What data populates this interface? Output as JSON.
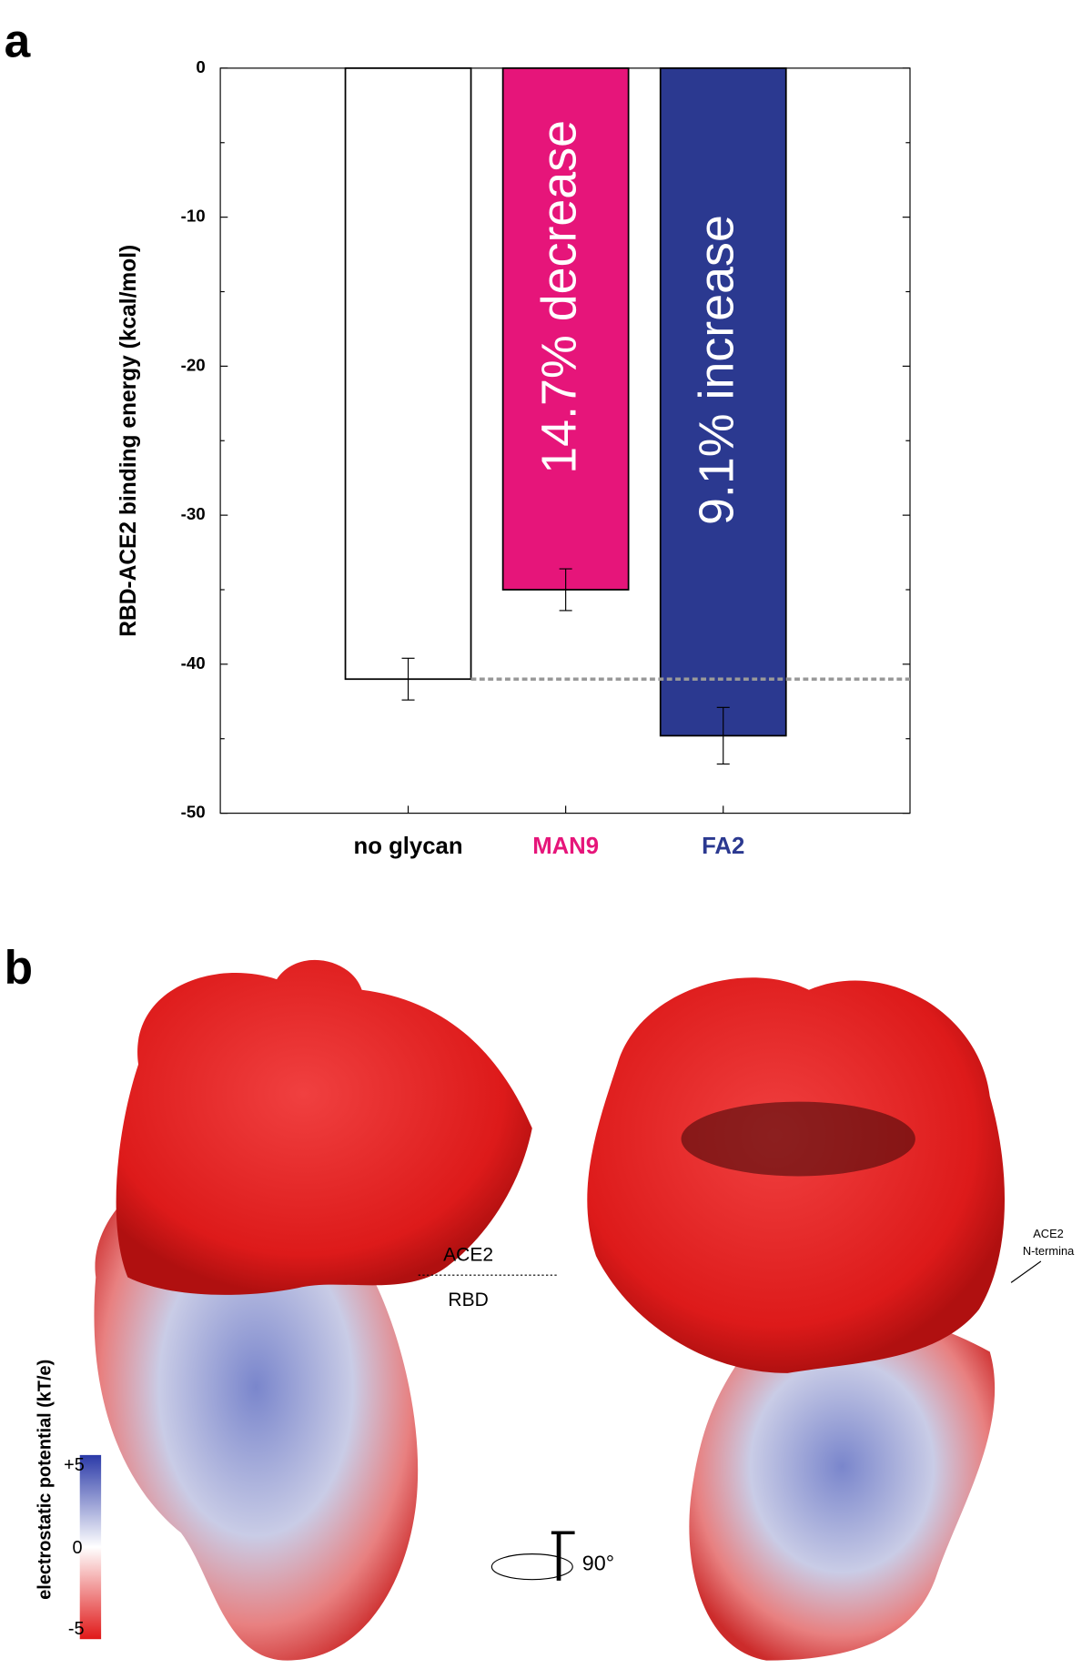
{
  "chart_data": {
    "type": "bar",
    "y_label": "RBD-ACE2 binding energy (kcal/mol)",
    "categories": [
      "no glycan",
      "MAN9",
      "FA2"
    ],
    "values": [
      -41.0,
      -35.0,
      -44.8
    ],
    "errors": [
      1.4,
      1.4,
      1.9
    ],
    "colors": [
      "#ffffff",
      "#e6157a",
      "#2b3990"
    ],
    "category_colors": [
      "#000000",
      "#e6157a",
      "#2b3990"
    ],
    "annotations": [
      "",
      "14.7% decrease",
      "9.1% increase"
    ],
    "ylim": [
      -50,
      0
    ],
    "yticks": [
      0,
      -10,
      -20,
      -30,
      -40,
      -50
    ]
  },
  "panel_labels": [
    "a",
    "b"
  ],
  "panel_b": {
    "ace2": "ACE2",
    "rbd": "RBD",
    "n_term": [
      "ACE2",
      "N-termina"
    ],
    "colorbar_title": "electrostatic potential (kT/e)",
    "colorbar_ticks": [
      "+5",
      "0",
      "-5"
    ],
    "rotation": "90°"
  }
}
